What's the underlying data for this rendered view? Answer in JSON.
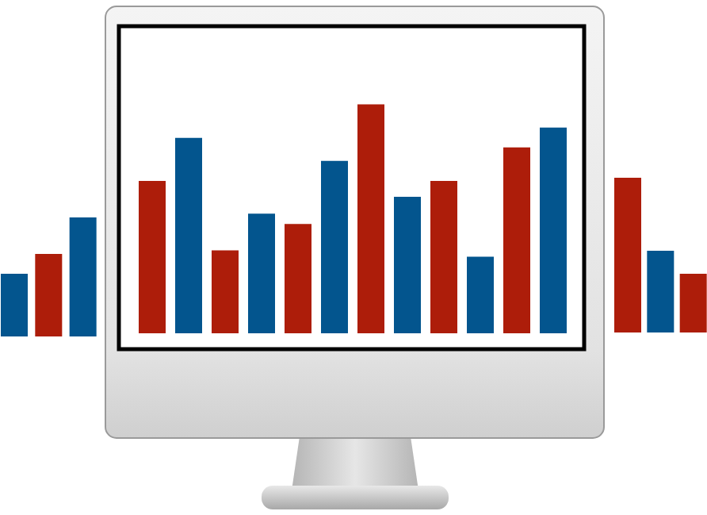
{
  "chart_data": [
    {
      "type": "bar",
      "categories": [
        null,
        null,
        null
      ],
      "values": [
        79,
        104,
        150
      ],
      "colors": [
        "#03558e",
        "#ad1d0a",
        "#03558e"
      ],
      "ylim": [
        0,
        200
      ],
      "tick_labels": false
    },
    {
      "type": "bar",
      "categories": [
        null,
        null,
        null,
        null,
        null,
        null,
        null,
        null,
        null,
        null,
        null,
        null
      ],
      "values": [
        191,
        245,
        104,
        150,
        137,
        216,
        287,
        171,
        191,
        96,
        233,
        258
      ],
      "colors": [
        "#ad1d0a",
        "#03558e",
        "#ad1d0a",
        "#03558e",
        "#ad1d0a",
        "#03558e",
        "#ad1d0a",
        "#03558e",
        "#ad1d0a",
        "#03558e",
        "#ad1d0a",
        "#03558e"
      ],
      "ylim": [
        0,
        380
      ],
      "tick_labels": false
    },
    {
      "type": "bar",
      "categories": [
        null,
        null,
        null
      ],
      "values": [
        195,
        103,
        74
      ],
      "colors": [
        "#ad1d0a",
        "#03558e",
        "#ad1d0a"
      ],
      "ylim": [
        0,
        200
      ],
      "tick_labels": false
    }
  ]
}
